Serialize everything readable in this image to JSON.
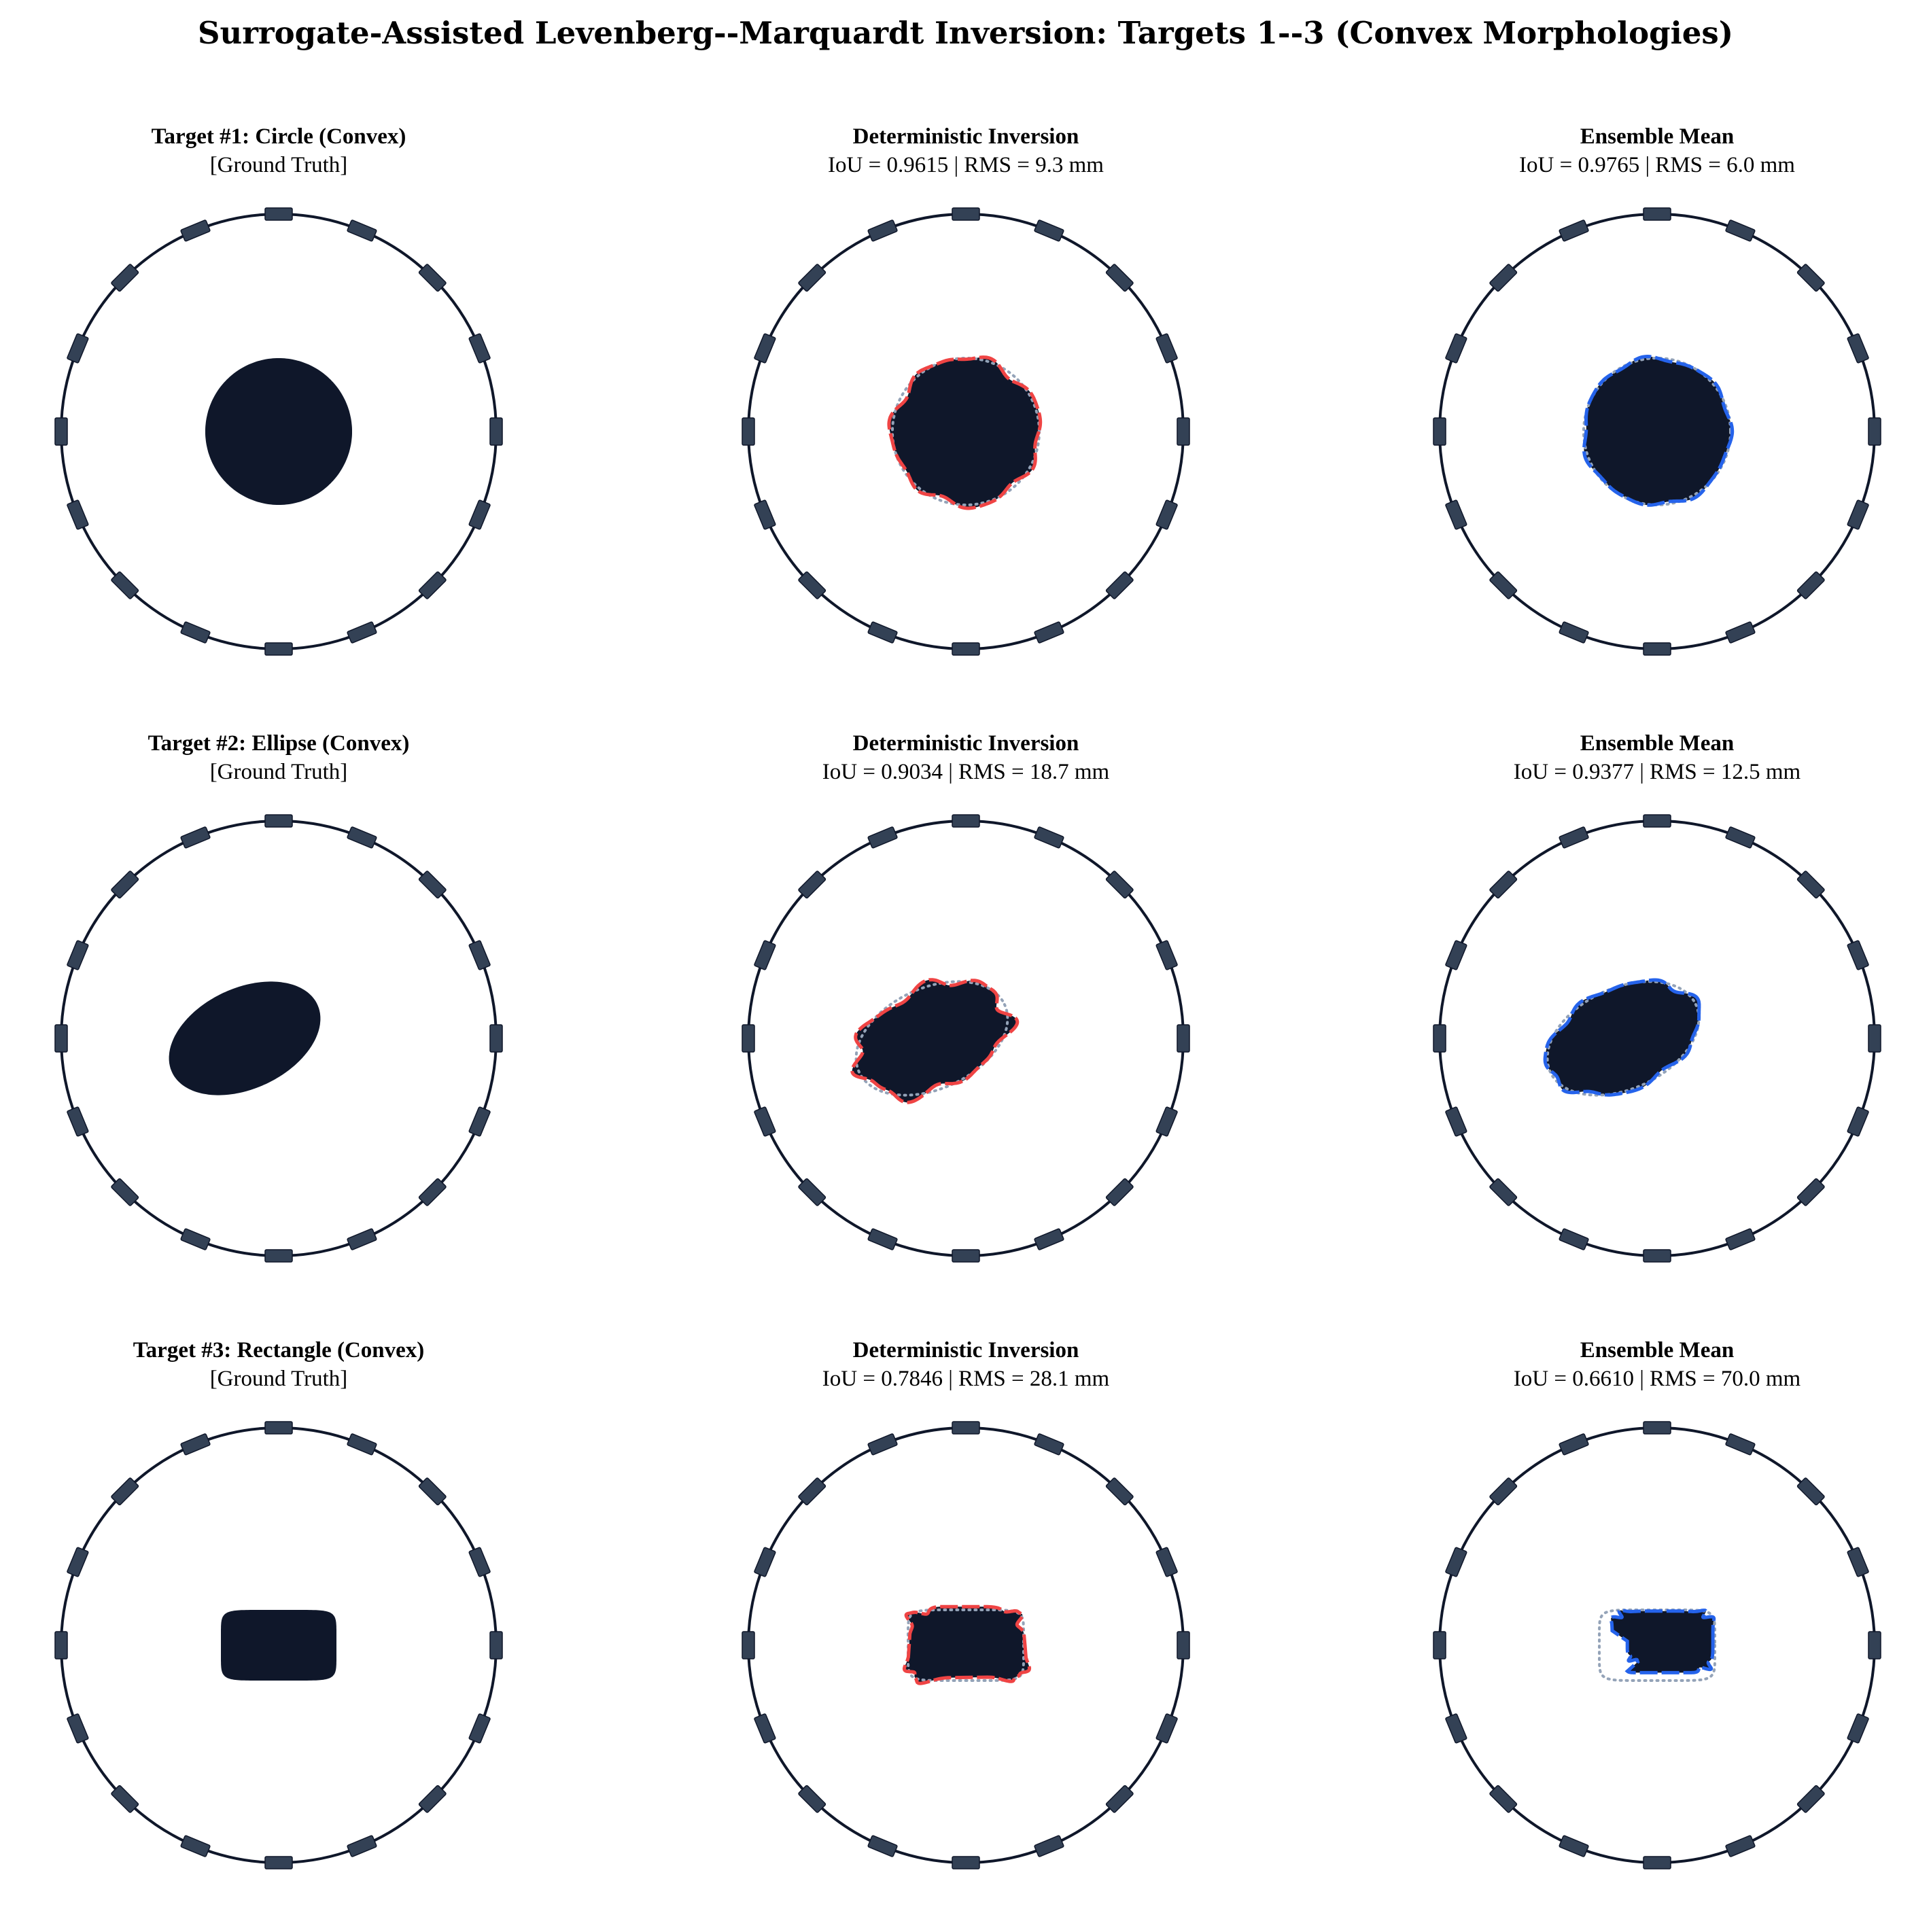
{
  "title": "Surrogate-Assisted Levenberg--Marquardt Inversion: Targets 1--3 (Convex Morphologies)",
  "colors": {
    "ring": "#0f172a",
    "electrode": "#334155",
    "inclusion": "#0f172a",
    "deterministic_outline": "#ef4444",
    "ensemble_outline": "#2563eb",
    "ground_truth_dotted": "#94a3b8"
  },
  "electrode_count": 16,
  "rows": [
    {
      "target": {
        "title": "Target #1:  Circle (Convex)",
        "subtitle": "[Ground Truth]",
        "shape": "circle"
      },
      "deterministic": {
        "title": "Deterministic Inversion",
        "metrics": "IoU = 0.9615 | RMS = 9.3 mm"
      },
      "ensemble": {
        "title": "Ensemble Mean",
        "metrics": "IoU = 0.9765 | RMS = 6.0 mm"
      }
    },
    {
      "target": {
        "title": "Target #2:  Ellipse (Convex)",
        "subtitle": "[Ground Truth]",
        "shape": "ellipse"
      },
      "deterministic": {
        "title": "Deterministic Inversion",
        "metrics": "IoU = 0.9034 | RMS = 18.7 mm"
      },
      "ensemble": {
        "title": "Ensemble Mean",
        "metrics": "IoU = 0.9377 | RMS = 12.5 mm"
      }
    },
    {
      "target": {
        "title": "Target #3:  Rectangle (Convex)",
        "subtitle": "[Ground Truth]",
        "shape": "rectangle"
      },
      "deterministic": {
        "title": "Deterministic Inversion",
        "metrics": "IoU = 0.7846 | RMS = 28.1 mm"
      },
      "ensemble": {
        "title": "Ensemble Mean",
        "metrics": "IoU = 0.6610 | RMS = 70.0 mm"
      }
    }
  ]
}
